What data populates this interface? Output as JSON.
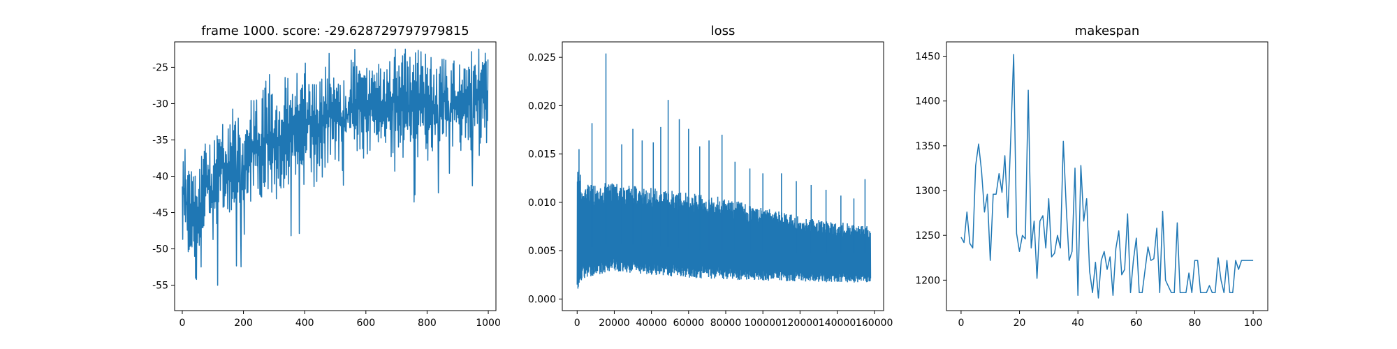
{
  "chart_data": [
    {
      "type": "line",
      "title": "frame 1000. score: -29.628729797979815",
      "xlim": [
        -25,
        1025
      ],
      "ylim": [
        -58.5,
        -21.5
      ],
      "xticks": [
        0,
        200,
        400,
        600,
        800,
        1000
      ],
      "yticks": [
        -55,
        -50,
        -45,
        -40,
        -35,
        -30,
        -25
      ],
      "color": "#1f77b4",
      "series": [
        {
          "x": [
            0,
            25,
            50,
            75,
            100,
            125,
            150,
            175,
            200,
            225,
            250,
            275,
            300,
            325,
            350,
            375,
            400,
            425,
            450,
            475,
            500,
            525,
            550,
            575,
            600,
            625,
            650,
            675,
            700,
            725,
            750,
            775,
            800,
            825,
            850,
            875,
            900,
            925,
            950,
            975,
            1000
          ],
          "y": [
            -41.5,
            -45,
            -48,
            -39,
            -43,
            -38,
            -40,
            -36,
            -41,
            -35,
            -37,
            -34,
            -36,
            -35,
            -33,
            -34,
            -32,
            -33,
            -34,
            -31,
            -32,
            -33,
            -31,
            -30,
            -32,
            -29,
            -31,
            -30,
            -29,
            -31,
            -30,
            -29,
            -30,
            -31,
            -29,
            -30,
            -31,
            -29,
            -30,
            -29,
            -29.6
          ]
        }
      ]
    },
    {
      "type": "line",
      "title": "loss",
      "xlim": [
        -8000,
        165000
      ],
      "ylim": [
        -0.0012,
        0.0266
      ],
      "xticks": [
        0,
        20000,
        40000,
        60000,
        80000,
        100000,
        120000,
        140000,
        160000
      ],
      "yticks": [
        0.0,
        0.005,
        0.01,
        0.015,
        0.02,
        0.025
      ],
      "ytick_labels": [
        "0.000",
        "0.005",
        "0.010",
        "0.015",
        "0.020",
        "0.025"
      ],
      "color": "#1f77b4",
      "series": [
        {
          "x": [
            0,
            1000,
            3000,
            10000,
            20000,
            40000,
            60000,
            80000,
            100000,
            120000,
            140000,
            158000
          ],
          "y_low": [
            0.0003,
            0.001,
            0.002,
            0.0025,
            0.0028,
            0.0025,
            0.0022,
            0.002,
            0.0019,
            0.0018,
            0.0017,
            0.0017
          ],
          "y_high": [
            0.015,
            0.014,
            0.012,
            0.012,
            0.012,
            0.0115,
            0.011,
            0.0105,
            0.0095,
            0.0085,
            0.008,
            0.0075
          ]
        }
      ],
      "spikes": [
        {
          "x": 1000,
          "y": 0.0155
        },
        {
          "x": 8000,
          "y": 0.0182
        },
        {
          "x": 15500,
          "y": 0.0254
        },
        {
          "x": 24000,
          "y": 0.016
        },
        {
          "x": 30000,
          "y": 0.0176
        },
        {
          "x": 35000,
          "y": 0.0164
        },
        {
          "x": 41000,
          "y": 0.0162
        },
        {
          "x": 45000,
          "y": 0.0178
        },
        {
          "x": 49000,
          "y": 0.0206
        },
        {
          "x": 55000,
          "y": 0.0186
        },
        {
          "x": 60000,
          "y": 0.0176
        },
        {
          "x": 66000,
          "y": 0.0158
        },
        {
          "x": 71000,
          "y": 0.0164
        },
        {
          "x": 78000,
          "y": 0.017
        },
        {
          "x": 85000,
          "y": 0.0142
        },
        {
          "x": 93000,
          "y": 0.0135
        },
        {
          "x": 100000,
          "y": 0.013
        },
        {
          "x": 110000,
          "y": 0.013
        },
        {
          "x": 118000,
          "y": 0.0122
        },
        {
          "x": 126000,
          "y": 0.0118
        },
        {
          "x": 134000,
          "y": 0.0113
        },
        {
          "x": 142000,
          "y": 0.0107
        },
        {
          "x": 149000,
          "y": 0.0104
        },
        {
          "x": 155000,
          "y": 0.0124
        }
      ]
    },
    {
      "type": "line",
      "title": "makespan",
      "xlim": [
        -5,
        105
      ],
      "ylim": [
        1166,
        1466
      ],
      "xticks": [
        0,
        20,
        40,
        60,
        80,
        100
      ],
      "yticks": [
        1200,
        1250,
        1300,
        1350,
        1400,
        1450
      ],
      "color": "#1f77b4",
      "series": [
        {
          "x": [
            0,
            1,
            2,
            3,
            4,
            5,
            6,
            7,
            8,
            9,
            10,
            11,
            12,
            13,
            14,
            15,
            16,
            17,
            18,
            19,
            20,
            21,
            22,
            23,
            24,
            25,
            26,
            27,
            28,
            29,
            30,
            31,
            32,
            33,
            34,
            35,
            36,
            37,
            38,
            39,
            40,
            41,
            42,
            43,
            44,
            45,
            46,
            47,
            48,
            49,
            50,
            51,
            52,
            53,
            54,
            55,
            56,
            57,
            58,
            59,
            60,
            61,
            62,
            63,
            64,
            65,
            66,
            67,
            68,
            69,
            70,
            71,
            72,
            73,
            74,
            75,
            76,
            77,
            78,
            79,
            80,
            81,
            82,
            83,
            84,
            85,
            86,
            87,
            88,
            89,
            90,
            91,
            92,
            93,
            94,
            95,
            96,
            97,
            98,
            99,
            100
          ],
          "y": [
            1248,
            1242,
            1276,
            1241,
            1236,
            1328,
            1352,
            1322,
            1276,
            1296,
            1222,
            1296,
            1296,
            1319,
            1298,
            1339,
            1270,
            1358,
            1452,
            1252,
            1232,
            1250,
            1246,
            1412,
            1236,
            1266,
            1202,
            1266,
            1272,
            1236,
            1291,
            1226,
            1230,
            1250,
            1236,
            1355,
            1281,
            1222,
            1232,
            1325,
            1183,
            1328,
            1266,
            1291,
            1210,
            1186,
            1220,
            1180,
            1222,
            1232,
            1212,
            1226,
            1183,
            1235,
            1255,
            1206,
            1212,
            1274,
            1186,
            1222,
            1247,
            1186,
            1186,
            1212,
            1237,
            1222,
            1224,
            1258,
            1186,
            1277,
            1200,
            1193,
            1186,
            1186,
            1264,
            1186,
            1186,
            1186,
            1208,
            1186,
            1222,
            1222,
            1186,
            1186,
            1186,
            1194,
            1186,
            1186,
            1225,
            1200,
            1186,
            1222,
            1186,
            1186,
            1222,
            1212,
            1222,
            1222,
            1222,
            1222,
            1222
          ]
        }
      ]
    }
  ]
}
